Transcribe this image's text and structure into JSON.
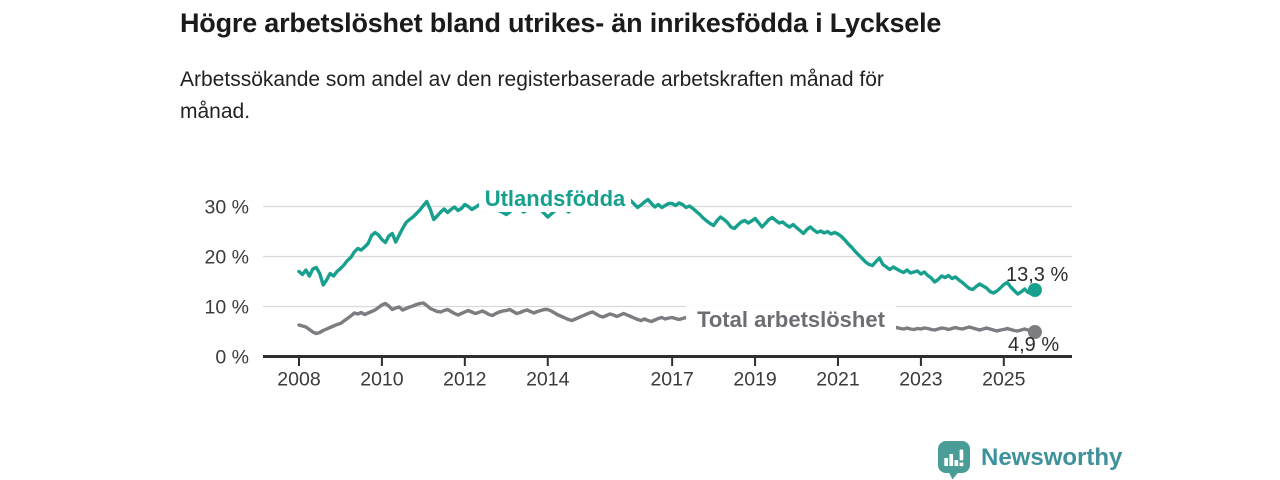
{
  "branding": {
    "logo_text": "Newsworthy",
    "logo_icon": "bar-chart-speech-bubble",
    "logo_icon_color": "#4a9d96",
    "logo_text_color": "#3e929b"
  },
  "chart_data": {
    "type": "line",
    "title": "Högre arbetslöshet bland utrikes- än inrikesfödda i Lycksele",
    "subtitle": "Arbetssökande som andel av den registerbaserade arbetskraften månad för\nmånad.",
    "unit": "%",
    "frequency": "monthly",
    "x_range": {
      "start": "2008-01",
      "end": "2025-10"
    },
    "xtick_years": [
      2008,
      2010,
      2012,
      2014,
      2017,
      2019,
      2021,
      2023,
      2025
    ],
    "yticks": [
      0,
      10,
      20,
      30
    ],
    "ytick_suffix": " %",
    "ylim": [
      0,
      35
    ],
    "grid": "horizontal",
    "legend": "inline-labels",
    "colors": {
      "grid": "#d9d9d9",
      "axis": "#2e2e2e",
      "tick_text": "#3b3b3b",
      "end_label_text": "#2c2c2c"
    },
    "series": [
      {
        "name": "Utlandsfödda",
        "color": "#17a08e",
        "label_color": "#17a08e",
        "end_label": "13,3 %",
        "end_value": 13.3,
        "values": [
          17.0,
          16.4,
          17.3,
          16.1,
          17.5,
          17.8,
          16.6,
          14.3,
          15.3,
          16.6,
          16.1,
          17.0,
          17.6,
          18.3,
          19.2,
          19.8,
          20.9,
          21.6,
          21.3,
          21.9,
          22.6,
          24.2,
          24.8,
          24.3,
          23.4,
          22.8,
          24.1,
          24.6,
          22.9,
          24.3,
          25.6,
          26.8,
          27.4,
          27.9,
          28.6,
          29.3,
          30.2,
          31.0,
          29.4,
          27.4,
          28.1,
          28.9,
          29.5,
          28.8,
          29.4,
          29.9,
          29.2,
          29.6,
          30.4,
          30.0,
          29.4,
          29.8,
          30.3,
          29.7,
          29.2,
          29.8,
          30.2,
          29.6,
          29.1,
          28.8,
          28.4,
          28.9,
          29.5,
          29.9,
          29.4,
          28.9,
          29.3,
          29.8,
          30.2,
          29.7,
          29.3,
          28.6,
          27.9,
          28.5,
          29.1,
          29.6,
          30.0,
          29.5,
          28.9,
          29.4,
          29.9,
          30.3,
          29.8,
          30.1,
          30.6,
          30.1,
          29.6,
          30.2,
          30.7,
          30.0,
          29.4,
          29.9,
          30.5,
          31.0,
          30.3,
          30.7,
          31.2,
          30.5,
          29.8,
          30.3,
          30.9,
          31.4,
          30.6,
          29.9,
          30.4,
          29.8,
          30.2,
          30.6,
          30.6,
          30.2,
          30.7,
          30.4,
          29.8,
          30.1,
          29.6,
          29.0,
          28.4,
          27.7,
          27.1,
          26.6,
          26.2,
          27.2,
          27.9,
          27.4,
          26.8,
          25.9,
          25.6,
          26.3,
          26.9,
          27.2,
          26.7,
          27.1,
          27.6,
          26.8,
          25.9,
          26.6,
          27.4,
          27.8,
          27.2,
          26.7,
          26.9,
          26.3,
          25.9,
          26.4,
          25.8,
          25.2,
          24.6,
          25.4,
          25.9,
          25.3,
          24.8,
          25.1,
          24.7,
          25.0,
          24.5,
          24.8,
          24.5,
          24.0,
          23.3,
          22.5,
          21.8,
          21.0,
          20.3,
          19.6,
          18.9,
          18.4,
          18.2,
          19.0,
          19.7,
          18.4,
          17.9,
          17.4,
          17.9,
          17.5,
          17.1,
          16.8,
          17.3,
          16.7,
          16.9,
          17.1,
          16.5,
          16.9,
          16.2,
          15.7,
          14.9,
          15.4,
          16.1,
          15.8,
          16.2,
          15.6,
          15.9,
          15.3,
          14.8,
          14.2,
          13.6,
          13.4,
          14.0,
          14.5,
          14.1,
          13.7,
          13.0,
          12.7,
          13.1,
          13.7,
          14.4,
          14.8,
          13.9,
          13.2,
          12.5,
          12.9,
          13.5,
          12.8,
          12.6,
          13.3
        ]
      },
      {
        "name": "Total arbetslöshet",
        "color": "#7c7c81",
        "label_color": "#6d6d73",
        "end_label": "4,9 %",
        "end_value": 4.9,
        "values": [
          6.3,
          6.1,
          5.9,
          5.4,
          4.9,
          4.6,
          4.8,
          5.2,
          5.5,
          5.8,
          6.1,
          6.4,
          6.6,
          7.1,
          7.6,
          8.1,
          8.7,
          8.5,
          8.8,
          8.4,
          8.7,
          9.0,
          9.3,
          9.8,
          10.3,
          10.6,
          10.1,
          9.4,
          9.7,
          9.9,
          9.3,
          9.6,
          9.9,
          10.1,
          10.4,
          10.6,
          10.7,
          10.2,
          9.6,
          9.3,
          9.0,
          8.9,
          9.2,
          9.4,
          9.0,
          8.6,
          8.3,
          8.6,
          8.9,
          9.2,
          8.9,
          8.6,
          8.8,
          9.1,
          8.8,
          8.4,
          8.2,
          8.6,
          8.9,
          9.1,
          9.2,
          9.4,
          9.0,
          8.6,
          8.8,
          9.1,
          9.3,
          9.0,
          8.7,
          9.0,
          9.2,
          9.4,
          9.4,
          9.1,
          8.7,
          8.3,
          8.0,
          7.7,
          7.4,
          7.2,
          7.5,
          7.8,
          8.1,
          8.4,
          8.7,
          8.9,
          8.5,
          8.1,
          7.9,
          8.2,
          8.5,
          8.3,
          8.0,
          8.3,
          8.6,
          8.3,
          8.0,
          7.7,
          7.4,
          7.2,
          7.5,
          7.2,
          7.0,
          7.3,
          7.6,
          7.8,
          7.5,
          7.7,
          7.8,
          7.6,
          7.4,
          7.6,
          7.8,
          7.7,
          7.5,
          7.7,
          7.6,
          7.8,
          7.7,
          7.6,
          7.5,
          7.2,
          7.0,
          7.3,
          7.0,
          6.8,
          7.1,
          6.9,
          6.7,
          7.0,
          7.2,
          6.9,
          7.1,
          7.4,
          7.2,
          7.0,
          7.2,
          7.5,
          7.3,
          7.1,
          7.3,
          7.6,
          7.4,
          7.7,
          8.0,
          8.3,
          8.6,
          8.8,
          8.6,
          8.4,
          8.2,
          8.0,
          7.8,
          7.6,
          7.4,
          7.2,
          7.0,
          6.8,
          6.6,
          6.4,
          6.2,
          6.0,
          5.9,
          5.8,
          5.7,
          5.6,
          5.8,
          5.9,
          5.8,
          5.7,
          5.9,
          5.7,
          5.6,
          5.8,
          5.6,
          5.5,
          5.7,
          5.5,
          5.4,
          5.6,
          5.5,
          5.7,
          5.6,
          5.4,
          5.3,
          5.5,
          5.7,
          5.6,
          5.4,
          5.6,
          5.8,
          5.6,
          5.5,
          5.7,
          5.9,
          5.7,
          5.5,
          5.3,
          5.5,
          5.7,
          5.5,
          5.3,
          5.1,
          5.3,
          5.4,
          5.6,
          5.4,
          5.2,
          5.1,
          5.3,
          5.5,
          5.3,
          5.0,
          4.9
        ]
      }
    ]
  }
}
